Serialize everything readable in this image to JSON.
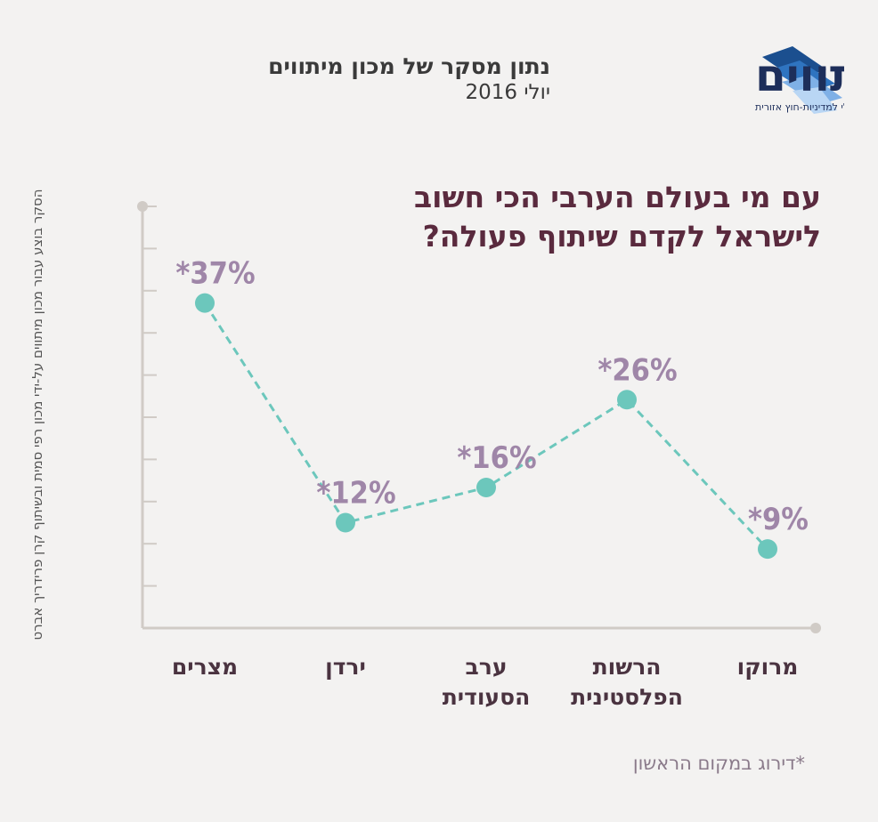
{
  "header": {
    "line1": "נתון מסקר של מכון מיתווים",
    "line2": "יולי 2016",
    "logo_name": "מיתווים",
    "logo_tagline": "המכון הישראלי למדיניות-חוץ אזורית"
  },
  "side_note": "הסקר בוצע עבור מכון מיתווים על-ידי מכון רפי סמית ובשיתוף קרן פרידריך אברט",
  "footnote": "*דירוג במקום הראשון",
  "colors": {
    "title": "#5a2a3e",
    "value_labels": "#9f86a8",
    "line": "#6cc7bc",
    "axis": "#d0cbc6"
  },
  "chart_data": {
    "type": "line",
    "title": "עם מי בעולם הערבי הכי חשוב\nלישראל לקדם שיתוף פעולה?",
    "categories": [
      "מצרים",
      "ירדן",
      "ערב\nהסעודית",
      "הרשות\nהפלסטינית",
      "מרוקו"
    ],
    "values": [
      37,
      12,
      16,
      26,
      9
    ],
    "value_labels": [
      "*37%",
      "*12%",
      "*16%",
      "*26%",
      "*9%"
    ],
    "ylim": [
      0,
      48
    ],
    "grid": false
  }
}
